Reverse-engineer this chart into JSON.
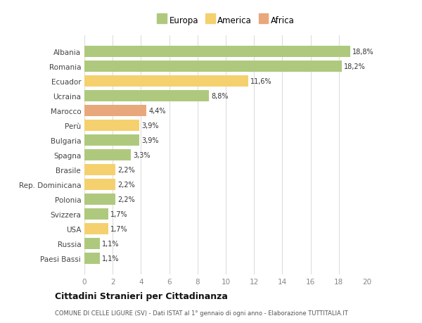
{
  "countries": [
    "Albania",
    "Romania",
    "Ecuador",
    "Ucraina",
    "Marocco",
    "Perù",
    "Bulgaria",
    "Spagna",
    "Brasile",
    "Rep. Dominicana",
    "Polonia",
    "Svizzera",
    "USA",
    "Russia",
    "Paesi Bassi"
  ],
  "values": [
    18.8,
    18.2,
    11.6,
    8.8,
    4.4,
    3.9,
    3.9,
    3.3,
    2.2,
    2.2,
    2.2,
    1.7,
    1.7,
    1.1,
    1.1
  ],
  "labels": [
    "18,8%",
    "18,2%",
    "11,6%",
    "8,8%",
    "4,4%",
    "3,9%",
    "3,9%",
    "3,3%",
    "2,2%",
    "2,2%",
    "2,2%",
    "1,7%",
    "1,7%",
    "1,1%",
    "1,1%"
  ],
  "categories": [
    "Europa",
    "America",
    "Africa"
  ],
  "continent": [
    "Europa",
    "Europa",
    "America",
    "Europa",
    "Africa",
    "America",
    "Europa",
    "Europa",
    "America",
    "America",
    "Europa",
    "Europa",
    "America",
    "Europa",
    "Europa"
  ],
  "colors": {
    "Europa": "#aec97d",
    "America": "#f5d06e",
    "Africa": "#e8a87c"
  },
  "xlim": [
    0,
    20
  ],
  "xticks": [
    0,
    2,
    4,
    6,
    8,
    10,
    12,
    14,
    16,
    18,
    20
  ],
  "title": "Cittadini Stranieri per Cittadinanza",
  "subtitle": "COMUNE DI CELLE LIGURE (SV) - Dati ISTAT al 1° gennaio di ogni anno - Elaborazione TUTTITALIA.IT",
  "background_color": "#ffffff",
  "grid_color": "#dddddd"
}
